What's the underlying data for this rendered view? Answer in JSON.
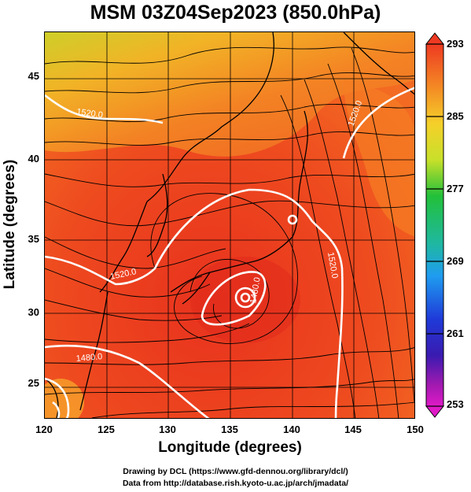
{
  "title": "MSM 03Z04Sep2023 (850.0hPa)",
  "x_axis": {
    "label": "Longitude (degrees)",
    "ticks": [
      "120",
      "125",
      "130",
      "135",
      "140",
      "145",
      "150"
    ]
  },
  "y_axis": {
    "label": "Latitude  (degrees)",
    "ticks": [
      "45",
      "40",
      "35",
      "30",
      "25"
    ]
  },
  "colorbar": {
    "ticks": [
      "293",
      "285",
      "277",
      "269",
      "261",
      "253"
    ]
  },
  "contour_labels": [
    "1520.0",
    "1520.0",
    "1520.0",
    "1520.0",
    "1480.0",
    "1480.0"
  ],
  "credits": {
    "line1": "Drawing by DCL (https://www.gfd-dennou.org/library/dcl/)",
    "line2": "Data from http://database.rish.kyoto-u.ac.jp/arch/jmadata/"
  }
}
